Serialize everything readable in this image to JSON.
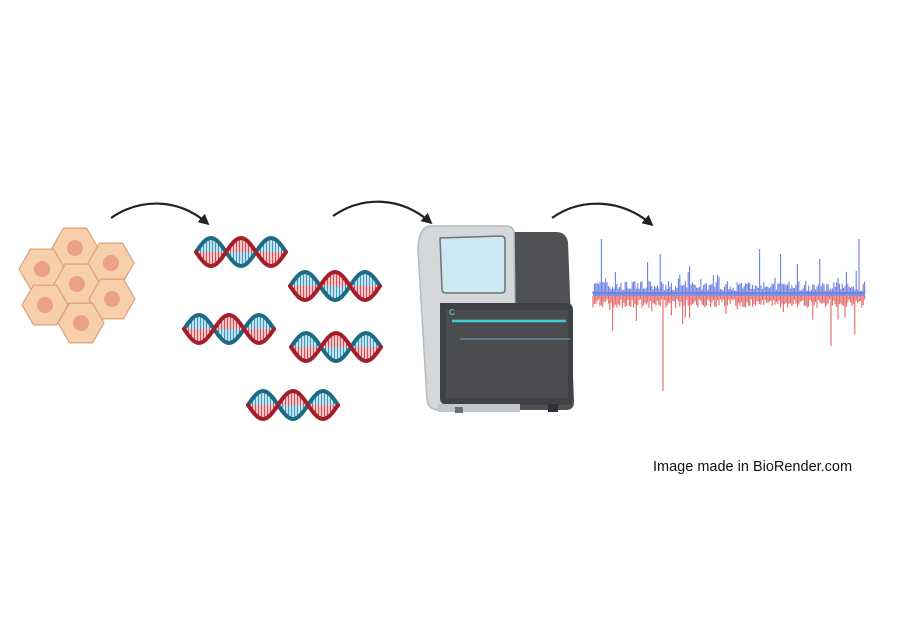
{
  "credit": "Image made in BioRender.com",
  "colors": {
    "cell_fill": "#f7cfab",
    "cell_stroke": "#d8a27a",
    "nucleus": "#eba185",
    "dna_red": "#a51d28",
    "dna_teal": "#1d6a85",
    "dna_rung_red": "#d94a52",
    "dna_rung_teal": "#3d9bbd",
    "arrow": "#222222",
    "sequencer_body": "#d9dcde",
    "sequencer_dark": "#4a4c4f",
    "sequencer_screen": "#cde9f3",
    "sequencer_accent": "#43c9cf",
    "signal_positive": "#6b7fe0",
    "signal_negative": "#e86666"
  },
  "icons": [
    "cell-cluster-icon",
    "dna-strand-icon",
    "sequencer-machine-icon",
    "coverage-track-icon",
    "flow-arrow-icon"
  ]
}
